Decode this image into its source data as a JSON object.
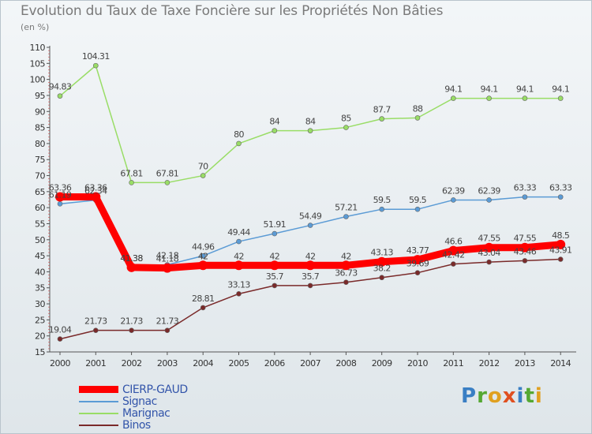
{
  "title": "Evolution du Taux de Taxe Foncière sur les Propriétés Non Bâties",
  "unit": "(en %)",
  "logo": "Proxiti",
  "chart_data": {
    "type": "line",
    "title": "Evolution du Taux de Taxe Foncière sur les Propriétés Non Bâties",
    "ylabel": "(en %)",
    "xlabel": "",
    "x": [
      "2000",
      "2001",
      "2002",
      "2003",
      "2004",
      "2005",
      "2006",
      "2007",
      "2008",
      "2009",
      "2010",
      "2011",
      "2012",
      "2013",
      "2014"
    ],
    "ylim": [
      15,
      110
    ],
    "yticks": [
      15,
      20,
      25,
      30,
      35,
      40,
      45,
      50,
      55,
      60,
      65,
      70,
      75,
      80,
      85,
      90,
      95,
      100,
      105,
      110
    ],
    "grid": false,
    "legend_position": "bottom-left",
    "series": [
      {
        "name": "CIERP-GAUD",
        "color": "#ff0000",
        "values": [
          63.36,
          63.36,
          41.38,
          41.18,
          42,
          42,
          42,
          42,
          42,
          43.13,
          43.77,
          46.6,
          47.55,
          47.55,
          48.5
        ],
        "labels": [
          "63.36",
          "63.36",
          "41.38",
          "41.18",
          "42",
          "42",
          "42",
          "42",
          "42",
          "43.13",
          "43.77",
          "46.6",
          "47.55",
          "47.55",
          "48.5"
        ]
      },
      {
        "name": "Signac",
        "color": "#5b9bd5",
        "values": [
          61.19,
          62.34,
          41.38,
          42.18,
          44.96,
          49.44,
          51.91,
          54.49,
          57.21,
          59.5,
          59.5,
          62.39,
          62.39,
          63.33,
          63.33
        ],
        "labels": [
          "61.19",
          "62.34",
          "41.38",
          "42.18",
          "44.96",
          "49.44",
          "51.91",
          "54.49",
          "57.21",
          "59.5",
          "59.5",
          "62.39",
          "62.39",
          "63.33",
          "63.33"
        ]
      },
      {
        "name": "Marignac",
        "color": "#99dd66",
        "values": [
          94.83,
          104.31,
          67.81,
          67.81,
          70,
          80,
          84,
          84,
          85,
          87.7,
          88,
          94.1,
          94.1,
          94.1,
          94.1
        ],
        "labels": [
          "94.83",
          "104.31",
          "67.81",
          "67.81",
          "70",
          "80",
          "84",
          "84",
          "85",
          "87.7",
          "88",
          "94.1",
          "94.1",
          "94.1",
          "94.1"
        ]
      },
      {
        "name": "Binos",
        "color": "#7a2a2a",
        "values": [
          19.04,
          21.73,
          21.73,
          21.73,
          28.81,
          33.13,
          35.7,
          35.7,
          36.73,
          38.2,
          39.69,
          42.42,
          43.04,
          43.46,
          43.91
        ],
        "labels": [
          "19.04",
          "21.73",
          "21.73",
          "21.73",
          "28.81",
          "33.13",
          "35.7",
          "35.7",
          "36.73",
          "38.2",
          "39.69",
          "42.42",
          "43.04",
          "43.46",
          "43.91"
        ]
      }
    ]
  }
}
